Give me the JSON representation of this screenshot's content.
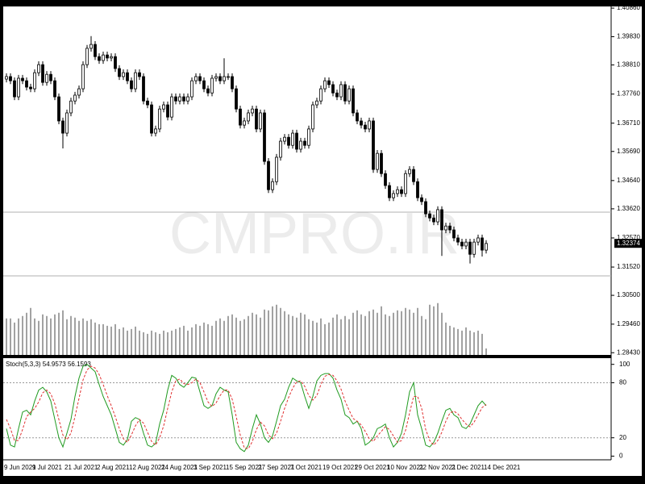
{
  "chart_data": [
    {
      "type": "candlestick",
      "watermark": "CMPRO.IR",
      "categories": [
        "9 Jun 2021",
        null,
        null,
        null,
        null,
        null,
        null,
        "9 Jul 2021",
        null,
        null,
        null,
        null,
        null,
        null,
        null,
        "21 Jul 2021",
        null,
        null,
        null,
        null,
        null,
        null,
        null,
        "2 Aug 2021",
        null,
        null,
        null,
        null,
        null,
        null,
        null,
        "12 Aug 2021",
        null,
        null,
        null,
        null,
        null,
        null,
        null,
        "24 Aug 2021",
        null,
        null,
        null,
        null,
        null,
        null,
        null,
        "3 Sep 2021",
        null,
        null,
        null,
        null,
        null,
        null,
        null,
        "15 Sep 2021",
        null,
        null,
        null,
        null,
        null,
        null,
        null,
        "27 Sep 2021",
        null,
        null,
        null,
        null,
        null,
        null,
        null,
        "7 Oct 2021",
        null,
        null,
        null,
        null,
        null,
        null,
        null,
        "19 Oct 2021",
        null,
        null,
        null,
        null,
        null,
        null,
        null,
        "29 Oct 2021",
        null,
        null,
        null,
        null,
        null,
        null,
        null,
        "10 Nov 2021",
        null,
        null,
        null,
        null,
        null,
        null,
        null,
        "22 Nov 2021",
        null,
        null,
        null,
        null,
        null,
        null,
        null,
        "2 Dec 2021",
        null,
        null,
        null,
        null,
        null,
        null,
        null,
        "14 Dec 2021"
      ],
      "open": [
        1.383,
        1.3839,
        1.3824,
        1.3766,
        1.3833,
        1.3824,
        1.3801,
        1.3795,
        1.3853,
        1.3882,
        1.3818,
        1.3847,
        1.3824,
        1.3766,
        1.3679,
        1.3635,
        1.3708,
        1.3751,
        1.3772,
        1.3795,
        1.3882,
        1.3941,
        1.3955,
        1.3911,
        1.3897,
        1.3917,
        1.3906,
        1.3911,
        1.3868,
        1.3839,
        1.3853,
        1.3824,
        1.3795,
        1.3853,
        1.3839,
        1.3751,
        1.3737,
        1.3635,
        1.365,
        1.3722,
        1.3737,
        1.3693,
        1.3766,
        1.3751,
        1.3766,
        1.3751,
        1.3766,
        1.3824,
        1.3839,
        1.3824,
        1.3795,
        1.378,
        1.3833,
        1.3839,
        1.3824,
        1.3839,
        1.3839,
        1.3795,
        1.3722,
        1.3664,
        1.3679,
        1.3708,
        1.3722,
        1.365,
        1.3708,
        1.3533,
        1.3431,
        1.346,
        1.3548,
        1.3606,
        1.362,
        1.3591,
        1.3635,
        1.3577,
        1.3606,
        1.3591,
        1.365,
        1.3737,
        1.3751,
        1.3795,
        1.3824,
        1.381,
        1.378,
        1.3766,
        1.381,
        1.3751,
        1.3795,
        1.3708,
        1.3679,
        1.3664,
        1.365,
        1.3679,
        1.3504,
        1.3562,
        1.3489,
        1.3446,
        1.3402,
        1.3417,
        1.3431,
        1.3417,
        1.3489,
        1.3504,
        1.346,
        1.3402,
        1.3388,
        1.3344,
        1.3329,
        1.3315,
        1.3359,
        1.3286,
        1.33,
        1.3286,
        1.3257,
        1.3242,
        1.3228,
        1.3242,
        1.3198,
        1.3242,
        1.3257,
        1.3213
      ],
      "high": [
        1.3851,
        1.3851,
        1.3836,
        1.3845,
        1.3845,
        1.3836,
        1.3813,
        1.3865,
        1.3894,
        1.3894,
        1.3859,
        1.3859,
        1.3836,
        1.3778,
        1.3691,
        1.372,
        1.3763,
        1.3784,
        1.3807,
        1.3894,
        1.3953,
        1.3985,
        1.3967,
        1.3923,
        1.3929,
        1.3929,
        1.3923,
        1.3923,
        1.388,
        1.3865,
        1.3865,
        1.3836,
        1.3865,
        1.3865,
        1.3851,
        1.3763,
        1.3749,
        1.3662,
        1.3734,
        1.3749,
        1.3749,
        1.3778,
        1.3778,
        1.3778,
        1.3778,
        1.3778,
        1.3836,
        1.3851,
        1.3851,
        1.3836,
        1.3807,
        1.3845,
        1.3851,
        1.3851,
        1.3905,
        1.3851,
        1.3851,
        1.3807,
        1.3734,
        1.3691,
        1.372,
        1.3734,
        1.3734,
        1.372,
        1.372,
        1.3545,
        1.3472,
        1.356,
        1.3618,
        1.3632,
        1.3632,
        1.3647,
        1.3647,
        1.3618,
        1.3618,
        1.3662,
        1.3749,
        1.3763,
        1.3807,
        1.3836,
        1.3836,
        1.3822,
        1.3792,
        1.3822,
        1.3822,
        1.3807,
        1.3807,
        1.372,
        1.3691,
        1.3676,
        1.3691,
        1.3691,
        1.3574,
        1.3574,
        1.3501,
        1.3458,
        1.3429,
        1.3443,
        1.3443,
        1.3501,
        1.3516,
        1.3516,
        1.3472,
        1.3414,
        1.34,
        1.3356,
        1.3341,
        1.3371,
        1.3371,
        1.3312,
        1.3312,
        1.3298,
        1.3269,
        1.3254,
        1.3254,
        1.3254,
        1.3254,
        1.3269,
        1.3269,
        1.3249
      ],
      "low": [
        1.3818,
        1.3812,
        1.3754,
        1.3754,
        1.3812,
        1.3789,
        1.3783,
        1.3783,
        1.3841,
        1.3806,
        1.3806,
        1.3812,
        1.3754,
        1.3667,
        1.358,
        1.3623,
        1.3696,
        1.3739,
        1.376,
        1.3783,
        1.387,
        1.3929,
        1.3899,
        1.3885,
        1.3885,
        1.3894,
        1.3894,
        1.3856,
        1.3827,
        1.3827,
        1.3812,
        1.3783,
        1.3783,
        1.3827,
        1.3739,
        1.3725,
        1.3623,
        1.3623,
        1.3638,
        1.371,
        1.3681,
        1.3681,
        1.3739,
        1.3739,
        1.3739,
        1.3739,
        1.3754,
        1.3812,
        1.3812,
        1.3783,
        1.3768,
        1.3768,
        1.3821,
        1.3812,
        1.3812,
        1.3827,
        1.3783,
        1.371,
        1.3652,
        1.3652,
        1.3667,
        1.3696,
        1.3638,
        1.3638,
        1.3521,
        1.3419,
        1.3419,
        1.3448,
        1.3536,
        1.3594,
        1.3579,
        1.3579,
        1.3565,
        1.3565,
        1.3579,
        1.3579,
        1.3638,
        1.3725,
        1.3739,
        1.3783,
        1.3798,
        1.3768,
        1.3754,
        1.3754,
        1.3739,
        1.3739,
        1.3696,
        1.3667,
        1.3652,
        1.3638,
        1.3638,
        1.3492,
        1.3492,
        1.3477,
        1.3434,
        1.339,
        1.339,
        1.3405,
        1.3405,
        1.3405,
        1.3477,
        1.3448,
        1.339,
        1.3376,
        1.3332,
        1.3317,
        1.3303,
        1.3303,
        1.3192,
        1.3274,
        1.3274,
        1.3245,
        1.323,
        1.3216,
        1.3216,
        1.3165,
        1.3186,
        1.323,
        1.319,
        1.3201
      ],
      "close": [
        1.3839,
        1.3824,
        1.3766,
        1.3833,
        1.3824,
        1.3801,
        1.3795,
        1.3853,
        1.3882,
        1.3818,
        1.3847,
        1.3824,
        1.3766,
        1.3679,
        1.3635,
        1.3708,
        1.3751,
        1.3772,
        1.3795,
        1.3882,
        1.3941,
        1.3955,
        1.3911,
        1.3897,
        1.3917,
        1.3906,
        1.3911,
        1.3868,
        1.3839,
        1.3853,
        1.3824,
        1.3795,
        1.3853,
        1.3839,
        1.3751,
        1.3737,
        1.3635,
        1.365,
        1.3722,
        1.3737,
        1.3693,
        1.3766,
        1.3751,
        1.3766,
        1.3751,
        1.3766,
        1.3824,
        1.3839,
        1.3824,
        1.3795,
        1.378,
        1.3833,
        1.3839,
        1.3824,
        1.3839,
        1.3839,
        1.3795,
        1.3722,
        1.3664,
        1.3679,
        1.3708,
        1.3722,
        1.365,
        1.3708,
        1.3533,
        1.3431,
        1.346,
        1.3548,
        1.3606,
        1.362,
        1.3591,
        1.3635,
        1.3577,
        1.3606,
        1.3591,
        1.365,
        1.3737,
        1.3751,
        1.3795,
        1.3824,
        1.381,
        1.378,
        1.3766,
        1.381,
        1.3751,
        1.3795,
        1.3708,
        1.3679,
        1.3664,
        1.365,
        1.3679,
        1.3504,
        1.3562,
        1.3489,
        1.3446,
        1.3402,
        1.3417,
        1.3431,
        1.3417,
        1.3489,
        1.3504,
        1.346,
        1.3402,
        1.3388,
        1.3344,
        1.3329,
        1.3315,
        1.3359,
        1.3286,
        1.33,
        1.3286,
        1.3257,
        1.3242,
        1.3228,
        1.3242,
        1.3198,
        1.3242,
        1.3257,
        1.3213,
        1.3237
      ],
      "up_color": "#ffffff",
      "down_color": "#000000",
      "volume": {
        "color": "#444444",
        "ylim": [
          0,
          430
        ],
        "values": [
          45,
          45,
          40,
          45,
          48,
          52,
          58,
          45,
          42,
          50,
          48,
          45,
          50,
          52,
          55,
          44,
          48,
          46,
          42,
          45,
          42,
          44,
          40,
          38,
          38,
          36,
          35,
          38,
          32,
          34,
          30,
          32,
          35,
          30,
          28,
          26,
          30,
          28,
          26,
          30,
          28,
          30,
          32,
          34,
          36,
          30,
          34,
          38,
          36,
          40,
          38,
          36,
          42,
          45,
          42,
          48,
          50,
          46,
          42,
          44,
          48,
          52,
          50,
          46,
          56,
          55,
          60,
          62,
          58,
          54,
          50,
          48,
          46,
          52,
          50,
          44,
          42,
          40,
          45,
          38,
          40,
          46,
          50,
          44,
          48,
          44,
          52,
          55,
          50,
          48,
          54,
          56,
          52,
          60,
          50,
          48,
          52,
          55,
          54,
          58,
          56,
          52,
          58,
          48,
          44,
          62,
          60,
          64,
          52,
          40,
          36,
          34,
          32,
          30,
          34,
          30,
          28,
          30,
          26,
          8
        ]
      },
      "ylim": [
        1.2835,
        1.4092
      ],
      "yticks": [
        {
          "value": 1.4086,
          "label": "1.40860"
        },
        {
          "value": 1.3983,
          "label": "1.39830"
        },
        {
          "value": 1.3881,
          "label": "1.38810"
        },
        {
          "value": 1.3776,
          "label": "1.37760"
        },
        {
          "value": 1.3671,
          "label": "1.36710"
        },
        {
          "value": 1.3569,
          "label": "1.35690"
        },
        {
          "value": 1.3464,
          "label": "1.34640"
        },
        {
          "value": 1.3362,
          "label": "1.33620"
        },
        {
          "value": 1.3257,
          "label": "1.32570"
        },
        {
          "value": 1.3152,
          "label": "1.31520"
        },
        {
          "value": 1.305,
          "label": "1.30500"
        },
        {
          "value": 1.2946,
          "label": "1.29460"
        },
        {
          "value": 1.2843,
          "label": "1.28430"
        }
      ],
      "levels": [
        1.335,
        1.312
      ],
      "last_price": 1.32374
    },
    {
      "type": "line",
      "title": "Stoch(5,3,3) 54.9573 56.1593",
      "series": [
        {
          "color": "#1f9a1f",
          "values": [
            30,
            12,
            10,
            30,
            48,
            50,
            45,
            60,
            72,
            75,
            70,
            60,
            40,
            20,
            10,
            25,
            40,
            65,
            85,
            98,
            100,
            96,
            92,
            78,
            65,
            55,
            45,
            30,
            15,
            12,
            18,
            38,
            42,
            40,
            25,
            12,
            10,
            14,
            35,
            50,
            72,
            88,
            85,
            78,
            75,
            80,
            86,
            85,
            70,
            55,
            52,
            55,
            68,
            75,
            72,
            70,
            45,
            15,
            8,
            5,
            12,
            30,
            45,
            35,
            20,
            15,
            22,
            38,
            55,
            62,
            75,
            85,
            82,
            80,
            65,
            52,
            65,
            82,
            88,
            90,
            90,
            85,
            72,
            62,
            45,
            42,
            35,
            38,
            30,
            12,
            15,
            20,
            30,
            32,
            35,
            20,
            10,
            15,
            25,
            45,
            70,
            80,
            45,
            30,
            12,
            10,
            15,
            25,
            38,
            50,
            52,
            45,
            42,
            32,
            30,
            35,
            45,
            55,
            60,
            54.9573
          ]
        },
        {
          "color": "#e03030",
          "dash": true,
          "values": [
            40,
            30,
            17,
            17,
            29,
            43,
            48,
            52,
            59,
            69,
            72,
            68,
            57,
            40,
            23,
            18,
            25,
            43,
            63,
            83,
            94,
            98,
            96,
            89,
            78,
            66,
            55,
            43,
            30,
            19,
            15,
            23,
            33,
            40,
            36,
            26,
            16,
            12,
            20,
            33,
            52,
            70,
            82,
            84,
            79,
            78,
            80,
            84,
            80,
            70,
            59,
            54,
            58,
            66,
            72,
            72,
            62,
            43,
            23,
            9,
            8,
            16,
            29,
            37,
            33,
            23,
            19,
            25,
            38,
            52,
            64,
            74,
            81,
            82,
            76,
            66,
            61,
            66,
            78,
            87,
            89,
            88,
            82,
            73,
            60,
            50,
            41,
            38,
            34,
            27,
            19,
            16,
            22,
            27,
            32,
            29,
            22,
            15,
            17,
            28,
            47,
            65,
            65,
            52,
            29,
            17,
            12,
            17,
            26,
            38,
            47,
            49,
            46,
            40,
            35,
            32,
            37,
            45,
            53,
            56.1593
          ]
        }
      ],
      "ylim": [
        -4,
        105
      ],
      "yticks": [
        0,
        20,
        80,
        100
      ],
      "levels": [
        20,
        80
      ]
    }
  ]
}
